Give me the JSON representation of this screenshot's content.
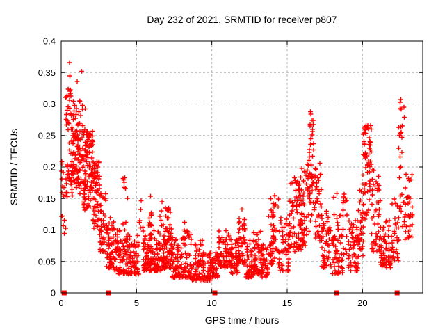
{
  "chart_data": {
    "type": "scatter",
    "title": "Day 232 of 2021, SRMTID for receiver p807",
    "xlabel": "GPS time / hours",
    "ylabel": "SRMTID / TECUs",
    "xlim": [
      0,
      24
    ],
    "ylim": [
      0,
      0.4
    ],
    "xticks": {
      "values": [
        0,
        5,
        10,
        15,
        20
      ],
      "labels": [
        "0",
        "5",
        "10",
        "15",
        "20"
      ]
    },
    "yticks": {
      "values": [
        0,
        0.05,
        0.1,
        0.15,
        0.2,
        0.25,
        0.3,
        0.35,
        0.4
      ],
      "labels": [
        "0",
        "0.05",
        "0.1",
        "0.15",
        "0.2",
        "0.25",
        "0.3",
        "0.35",
        "0.4"
      ]
    },
    "grid": true,
    "legend": "none",
    "marker": "plus",
    "marker_color": "#ff0000",
    "grid_color": "#b3b3b3",
    "border_color": "#000000",
    "band_segments_comment": "scatter envelope read from plot: [hour_start, hour_end, n_points, value_min, value_max, low_skew]",
    "band_segments": [
      [
        0.02,
        0.3,
        14,
        0.09,
        0.23,
        1.0
      ],
      [
        0.3,
        0.75,
        55,
        0.15,
        0.325,
        1.1
      ],
      [
        0.75,
        1.45,
        95,
        0.155,
        0.305,
        1.15
      ],
      [
        1.45,
        2.1,
        110,
        0.13,
        0.26,
        1.1
      ],
      [
        2.1,
        2.55,
        55,
        0.1,
        0.21,
        1.2
      ],
      [
        2.55,
        3.0,
        45,
        0.065,
        0.165,
        1.4
      ],
      [
        3.0,
        3.55,
        55,
        0.04,
        0.12,
        1.6
      ],
      [
        3.55,
        4.3,
        70,
        0.03,
        0.1,
        1.8
      ],
      [
        4.1,
        4.5,
        8,
        0.1,
        0.185,
        1.0
      ],
      [
        4.3,
        5.15,
        75,
        0.03,
        0.095,
        1.9
      ],
      [
        5.15,
        5.45,
        7,
        0.095,
        0.148,
        1.0
      ],
      [
        5.45,
        6.05,
        70,
        0.035,
        0.1,
        1.8
      ],
      [
        5.78,
        6.02,
        12,
        0.1,
        0.158,
        1.0
      ],
      [
        6.05,
        6.85,
        80,
        0.035,
        0.1,
        1.9
      ],
      [
        6.55,
        6.8,
        5,
        0.1,
        0.147,
        1.0
      ],
      [
        6.85,
        7.35,
        55,
        0.04,
        0.11,
        1.7
      ],
      [
        6.9,
        7.25,
        9,
        0.11,
        0.135,
        1.0
      ],
      [
        7.35,
        8.15,
        75,
        0.025,
        0.09,
        1.8
      ],
      [
        8.15,
        8.65,
        45,
        0.025,
        0.1,
        1.9
      ],
      [
        8.65,
        9.4,
        60,
        0.02,
        0.085,
        1.8
      ],
      [
        9.4,
        10.05,
        50,
        0.02,
        0.065,
        1.6
      ],
      [
        10.05,
        10.45,
        30,
        0.025,
        0.07,
        1.5
      ],
      [
        10.45,
        11.25,
        65,
        0.04,
        0.1,
        1.5
      ],
      [
        11.25,
        11.75,
        45,
        0.03,
        0.085,
        1.7
      ],
      [
        11.75,
        12.25,
        50,
        0.045,
        0.125,
        1.5
      ],
      [
        12.25,
        12.75,
        45,
        0.025,
        0.085,
        1.7
      ],
      [
        12.75,
        13.25,
        45,
        0.03,
        0.1,
        1.7
      ],
      [
        13.25,
        13.75,
        40,
        0.025,
        0.08,
        1.7
      ],
      [
        13.75,
        14.45,
        55,
        0.045,
        0.155,
        1.4
      ],
      [
        14.45,
        15.15,
        50,
        0.035,
        0.12,
        1.6
      ],
      [
        15.15,
        15.95,
        75,
        0.065,
        0.185,
        1.2
      ],
      [
        15.95,
        16.45,
        45,
        0.075,
        0.205,
        1.3
      ],
      [
        16.45,
        16.8,
        40,
        0.11,
        0.285,
        1.0
      ],
      [
        16.8,
        17.3,
        40,
        0.075,
        0.21,
        1.3
      ],
      [
        17.3,
        17.95,
        45,
        0.04,
        0.13,
        1.5
      ],
      [
        17.95,
        18.7,
        60,
        0.03,
        0.125,
        1.7
      ],
      [
        18.7,
        19.05,
        16,
        0.055,
        0.175,
        1.1
      ],
      [
        19.05,
        19.7,
        55,
        0.035,
        0.115,
        1.6
      ],
      [
        19.7,
        20.1,
        35,
        0.05,
        0.19,
        1.3
      ],
      [
        20.05,
        20.65,
        60,
        0.115,
        0.275,
        1.0
      ],
      [
        20.6,
        21.2,
        45,
        0.065,
        0.2,
        1.5
      ],
      [
        21.2,
        21.95,
        60,
        0.04,
        0.115,
        1.6
      ],
      [
        21.95,
        22.4,
        30,
        0.05,
        0.155,
        1.4
      ],
      [
        22.4,
        22.8,
        28,
        0.1,
        0.295,
        0.9
      ],
      [
        22.8,
        23.35,
        35,
        0.085,
        0.2,
        1.3
      ]
    ],
    "outlier_points_comment": "individual [hour, value] points read from plot",
    "outlier_points": [
      [
        0.55,
        0.366
      ],
      [
        0.58,
        0.345
      ],
      [
        0.62,
        0.322
      ],
      [
        0.5,
        0.314
      ],
      [
        1.05,
        0.336
      ],
      [
        1.35,
        0.352
      ],
      [
        1.22,
        0.305
      ],
      [
        1.6,
        0.292
      ],
      [
        0.3,
        0.103
      ],
      [
        0.25,
        0.155
      ],
      [
        2.95,
        0.147
      ],
      [
        4.22,
        0.183
      ],
      [
        6.7,
        0.145
      ],
      [
        8.2,
        0.112
      ],
      [
        12.0,
        0.133
      ],
      [
        16.55,
        0.288
      ],
      [
        18.1,
        0.152
      ],
      [
        18.3,
        0.158
      ],
      [
        22.5,
        0.303
      ],
      [
        22.55,
        0.307
      ]
    ],
    "baseline_squares_comment": "red filled squares on the y=0 axis at these hours",
    "baseline_squares": [
      0.2,
      3.15,
      10.2,
      18.3,
      22.3
    ]
  }
}
